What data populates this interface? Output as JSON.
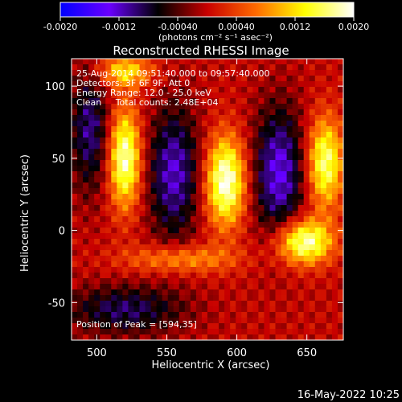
{
  "chart_data": {
    "type": "heatmap",
    "title": "Reconstructed RHESSI Image",
    "xlabel": "Heliocentric X (arcsec)",
    "ylabel": "Heliocentric Y (arcsec)",
    "xlim": [
      482,
      676
    ],
    "ylim": [
      -76,
      119
    ],
    "x_ticks": [
      500,
      550,
      600,
      650
    ],
    "y_ticks": [
      -50,
      0,
      50,
      100
    ],
    "colorbar": {
      "range": [
        -0.002,
        0.002
      ],
      "ticks": [
        "-0.0020",
        "-0.0012",
        "-0.00040",
        "0.00040",
        "0.0012",
        "0.0020"
      ],
      "units": "(photons cm⁻² s⁻¹ asec⁻²)",
      "colormap": [
        "#0000ff",
        "#6a00ff",
        "#000000",
        "#c80000",
        "#ff6a00",
        "#ffff00",
        "#ffffff"
      ]
    },
    "annotations": [
      "25-Aug-2014 09:51:40.000 to 09:57:40.000",
      "Detectors: 3F 6F 9F, Att 0",
      "Energy Range: 12.0 - 25.0 keV",
      "Clean     Total counts: 2.48E+04"
    ],
    "peak_label": "Position of Peak = [594,35]",
    "peak_position": [
      594,
      35
    ],
    "sources": [
      {
        "x": 520,
        "y": 50,
        "sx": 8,
        "sy": 24,
        "amp": 0.0019
      },
      {
        "x": 592,
        "y": 34,
        "sx": 10,
        "sy": 22,
        "amp": 0.002
      },
      {
        "x": 663,
        "y": 47,
        "sx": 9,
        "sy": 22,
        "amp": 0.0017
      },
      {
        "x": 648,
        "y": -8,
        "sx": 14,
        "sy": 11,
        "amp": 0.0019
      },
      {
        "x": 560,
        "y": -20,
        "sx": 28,
        "sy": 7,
        "amp": 0.0009
      },
      {
        "x": 520,
        "y": 110,
        "sx": 14,
        "sy": 8,
        "amp": 0.0012
      }
    ],
    "negative_regions": [
      {
        "x": 555,
        "y": 40,
        "sx": 13,
        "sy": 32,
        "amp": -0.0012
      },
      {
        "x": 630,
        "y": 40,
        "sx": 13,
        "sy": 32,
        "amp": -0.0013
      },
      {
        "x": 495,
        "y": 70,
        "sx": 10,
        "sy": 30,
        "amp": -0.001
      },
      {
        "x": 520,
        "y": -55,
        "sx": 30,
        "sy": 12,
        "amp": -0.0009
      }
    ]
  },
  "footer": {
    "timestamp": "16-May-2022 10:25"
  }
}
